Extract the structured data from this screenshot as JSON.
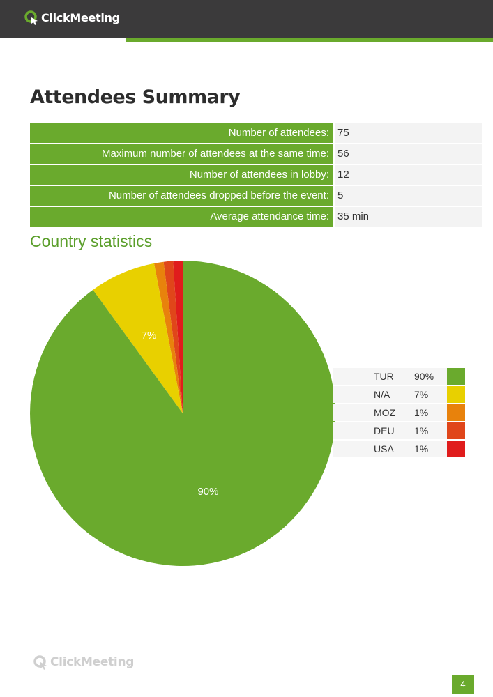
{
  "brand": {
    "name": "ClickMeeting"
  },
  "colors": {
    "header_bg": "#3b3a3b",
    "accent_green": "#6aaa2d",
    "row_value_bg": "#f3f3f3"
  },
  "summary": {
    "title": "Attendees Summary",
    "rows": [
      {
        "label": "Number of attendees:",
        "value": "75"
      },
      {
        "label": "Maximum number of attendees at the same time:",
        "value": "56"
      },
      {
        "label": "Number of attendees in lobby:",
        "value": "12"
      },
      {
        "label": "Number of attendees dropped before the event:",
        "value": "5"
      },
      {
        "label": "Average attendance time:",
        "value": "35 min"
      }
    ]
  },
  "country_statistics": {
    "title": "Country statistics"
  },
  "chart_data": {
    "type": "pie",
    "title": "Country statistics",
    "categories": [
      "TUR",
      "N/A",
      "MOZ",
      "DEU",
      "USA"
    ],
    "values": [
      90,
      7,
      1,
      1,
      1
    ],
    "labels": [
      "90%",
      "7%",
      "1%",
      "1%",
      "1%"
    ],
    "colors": [
      "#6aaa2d",
      "#e8d000",
      "#e8820c",
      "#e0461a",
      "#e01c1c"
    ],
    "slice_labels_shown": [
      "90%",
      "7%"
    ],
    "legend_position": "right"
  },
  "footer": {
    "page_number": "4"
  }
}
